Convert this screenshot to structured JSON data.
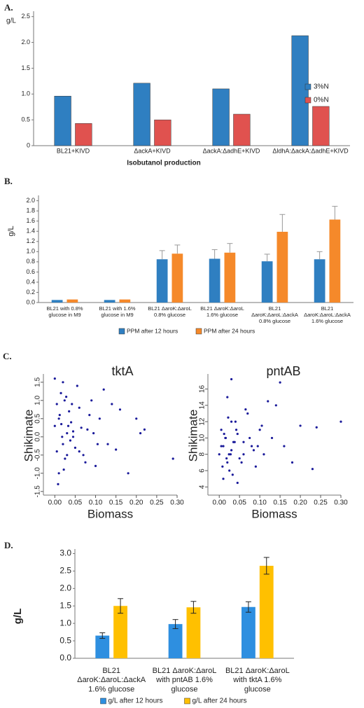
{
  "chart_data": [
    {
      "type": "bar",
      "panel": "A.",
      "ylabel": "g/L",
      "xlabel": "Isobutanol production",
      "legend": "right",
      "categories": [
        "BL21+KIVD",
        "ΔackA+KIVD",
        "ΔackA:ΔadhE+KIVD",
        "ΔldhA:ΔackA:ΔadhE+KIVD"
      ],
      "series": [
        {
          "name": "3%N",
          "color": "#2f7fc1",
          "values": [
            0.96,
            1.21,
            1.1,
            2.13
          ]
        },
        {
          "name": "0%N",
          "color": "#e0524f",
          "values": [
            0.43,
            0.5,
            0.61,
            0.76
          ]
        }
      ],
      "ylim": [
        0,
        2.55
      ],
      "yticks": [
        0,
        0.5,
        {
          "value": 1,
          "label": "1.0"
        },
        1.5,
        {
          "value": 2,
          "label": "2.0"
        },
        2.5
      ]
    },
    {
      "type": "bar",
      "panel": "B.",
      "ylabel": "g/L",
      "legend": "bottom",
      "categories": [
        [
          "BL21 with 0.8%",
          "glucose in M9"
        ],
        [
          "BL21 with 1.6%",
          "glucose in M9"
        ],
        [
          "BL21 ΔaroK:ΔaroL",
          "0.8% glucose"
        ],
        [
          "BL21 ΔaroK:ΔaroL",
          "1.6% glucose"
        ],
        [
          "BL21",
          "ΔaroK:ΔaroL:ΔackA",
          "0.8% glucose"
        ],
        [
          "BL21",
          "ΔaroK:ΔaroL:ΔackA",
          "1.6% glucose"
        ]
      ],
      "series": [
        {
          "name": "PPM after 12 hours",
          "color": "#2f7fc1",
          "values": [
            0.05,
            0.05,
            0.85,
            0.86,
            0.81,
            0.85
          ],
          "errors": [
            0,
            0,
            0.17,
            0.18,
            0.14,
            0.15
          ]
        },
        {
          "name": "PPM after 24 hours",
          "color": "#f5892a",
          "values": [
            0.06,
            0.06,
            0.96,
            0.98,
            1.39,
            1.63
          ],
          "errors": [
            0,
            0,
            0.17,
            0.18,
            0.34,
            0.26
          ]
        }
      ],
      "ylim": [
        0,
        2.05
      ],
      "yticks": [
        {
          "value": 0,
          "label": "0.0"
        },
        0.2,
        0.4,
        0.6,
        0.8,
        {
          "value": 1,
          "label": "1.0"
        },
        1.2,
        1.4,
        1.6,
        1.8,
        {
          "value": 2,
          "label": "2.0"
        }
      ]
    },
    {
      "type": "scatter",
      "panel": "C.",
      "title": "tktA",
      "xlabel": "Biomass",
      "ylabel": "Shikimate",
      "color": "#1a1a9a",
      "x": [
        0.0,
        0.01,
        0.02,
        0.005,
        0.015,
        0.03,
        0.025,
        0.04,
        0.01,
        0.02,
        0.035,
        0.05,
        0.045,
        0.06,
        0.07,
        0.08,
        0.09,
        0.1,
        0.11,
        0.12,
        0.13,
        0.15,
        0.16,
        0.18,
        0.2,
        0.21,
        0.22,
        0.29,
        0.005,
        0.012,
        0.018,
        0.022,
        0.028,
        0.033,
        0.038,
        0.042,
        0.055,
        0.065,
        0.075,
        0.085,
        0.095,
        0.105,
        0.14,
        0.0,
        0.008,
        0.016,
        0.024,
        0.03,
        0.045,
        0.06
      ],
      "values": [
        0.3,
        0.5,
        -0.2,
        0.9,
        1.2,
        0.1,
        -0.6,
        0.4,
        -1.0,
        1.5,
        0.7,
        -0.3,
        0.0,
        0.8,
        -0.5,
        0.2,
        1.0,
        -0.8,
        0.5,
        1.3,
        -0.2,
        -0.35,
        0.75,
        -1.0,
        0.5,
        0.1,
        0.2,
        -0.6,
        -0.4,
        0.6,
        0.0,
        -0.9,
        1.1,
        0.3,
        -0.1,
        0.9,
        1.4,
        0.25,
        -0.7,
        0.6,
        0.1,
        -0.2,
        0.9,
        1.6,
        -1.3,
        0.35,
        1.0,
        -0.5,
        0.15,
        -0.4
      ],
      "xlim": [
        -0.028,
        0.3
      ],
      "xticks": [
        {
          "value": 0,
          "label": "0.00"
        },
        0.05,
        {
          "value": 0.1,
          "label": "0.10"
        },
        0.15,
        {
          "value": 0.2,
          "label": "0.20"
        },
        0.25,
        {
          "value": 0.3,
          "label": "0.30"
        }
      ],
      "ylim": [
        -1.6,
        1.65
      ],
      "yticks": [
        -1.5,
        {
          "value": -1,
          "label": "-1.0"
        },
        -0.5,
        {
          "value": 0,
          "label": "0.0"
        },
        0.5,
        {
          "value": 1,
          "label": "1.0"
        },
        1.5
      ]
    },
    {
      "type": "scatter",
      "title": "pntAB",
      "xlabel": "Biomass",
      "ylabel": "Shikimate",
      "color": "#1a1a9a",
      "x": [
        0.0,
        0.01,
        0.02,
        0.005,
        0.015,
        0.03,
        0.025,
        0.04,
        0.01,
        0.02,
        0.035,
        0.05,
        0.045,
        0.06,
        0.07,
        0.08,
        0.09,
        0.1,
        0.11,
        0.12,
        0.13,
        0.15,
        0.16,
        0.18,
        0.2,
        0.23,
        0.24,
        0.3,
        0.005,
        0.012,
        0.018,
        0.022,
        0.028,
        0.033,
        0.038,
        0.042,
        0.055,
        0.065,
        0.075,
        0.085,
        0.095,
        0.105,
        0.14,
        0.03,
        0.008,
        0.016,
        0.024,
        0.03,
        0.045,
        0.06
      ],
      "values": [
        8,
        9,
        7,
        11,
        10,
        8.5,
        6,
        12,
        5,
        15,
        9.5,
        7.5,
        10.5,
        8,
        13,
        9,
        6.5,
        11,
        8,
        14.5,
        10,
        16.8,
        9,
        7,
        11.5,
        6.2,
        11.3,
        12,
        9,
        10.5,
        7.5,
        12.5,
        8,
        5.5,
        9.5,
        11,
        7,
        13.5,
        10,
        8.5,
        9,
        11.5,
        14,
        17.2,
        6.5,
        10,
        8,
        12,
        4.5,
        9.5
      ],
      "xlim": [
        -0.028,
        0.3
      ],
      "xticks": [
        {
          "value": 0,
          "label": "0.00"
        },
        0.05,
        {
          "value": 0.1,
          "label": "0.10"
        },
        0.15,
        {
          "value": 0.2,
          "label": "0.20"
        },
        0.25,
        {
          "value": 0.3,
          "label": "0.30"
        }
      ],
      "ylim": [
        3,
        17.5
      ],
      "yticks": [
        4,
        6,
        8,
        10,
        12,
        14,
        16
      ]
    },
    {
      "type": "bar",
      "panel": "D.",
      "ylabel": "g/L",
      "legend": "bottom",
      "categories": [
        [
          "BL21",
          "ΔaroK:ΔaroL:ΔackA",
          "1.6% glucose"
        ],
        [
          "BL21 ΔaroK:ΔaroL",
          "with pntAB 1.6%",
          "glucose"
        ],
        [
          "BL21 ΔaroK:ΔaroL",
          "with tktA 1.6%",
          "glucose"
        ]
      ],
      "series": [
        {
          "name": "g/L after 12 hours",
          "color": "#2e8fe0",
          "values": [
            0.65,
            0.98,
            1.47
          ],
          "errors": [
            0.08,
            0.13,
            0.15
          ]
        },
        {
          "name": "g/L after 24 hours",
          "color": "#ffc000",
          "values": [
            1.5,
            1.46,
            2.65
          ],
          "errors": [
            0.21,
            0.17,
            0.24
          ]
        }
      ],
      "ylim": [
        0,
        3.05
      ],
      "yticks": [
        {
          "value": 0,
          "label": "0.0"
        },
        0.5,
        {
          "value": 1,
          "label": "1.0"
        },
        1.5,
        {
          "value": 2,
          "label": "2.0"
        },
        2.5,
        {
          "value": 3,
          "label": "3.0"
        }
      ]
    }
  ]
}
